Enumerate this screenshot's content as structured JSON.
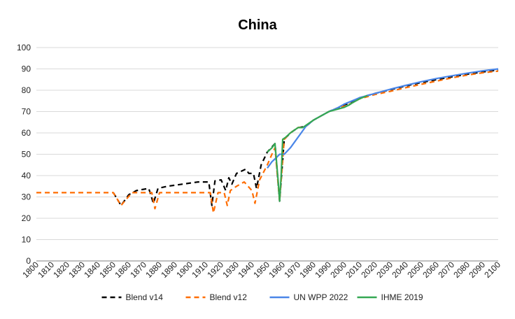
{
  "chart_data": {
    "type": "line",
    "title": "China",
    "xlabel": "",
    "ylabel": "",
    "xlim": [
      1800,
      2100
    ],
    "ylim": [
      0,
      100
    ],
    "x_ticks": [
      1800,
      1810,
      1820,
      1830,
      1840,
      1850,
      1860,
      1870,
      1880,
      1890,
      1900,
      1910,
      1920,
      1930,
      1940,
      1950,
      1960,
      1970,
      1980,
      1990,
      2000,
      2010,
      2020,
      2030,
      2040,
      2050,
      2060,
      2070,
      2080,
      2090,
      2100
    ],
    "y_ticks": [
      0,
      10,
      20,
      30,
      40,
      50,
      60,
      70,
      80,
      90,
      100
    ],
    "grid": "horizontal",
    "legend_position": "bottom",
    "series": [
      {
        "name": "Blend v14",
        "color": "#000000",
        "style": "dashed",
        "points": [
          [
            1850,
            32
          ],
          [
            1855,
            26
          ],
          [
            1860,
            31
          ],
          [
            1865,
            33
          ],
          [
            1873,
            34
          ],
          [
            1876,
            27
          ],
          [
            1879,
            34
          ],
          [
            1885,
            35
          ],
          [
            1895,
            36
          ],
          [
            1905,
            37
          ],
          [
            1912,
            37
          ],
          [
            1914,
            26
          ],
          [
            1916,
            37.5
          ],
          [
            1920,
            38
          ],
          [
            1923,
            33
          ],
          [
            1925,
            39
          ],
          [
            1927,
            36
          ],
          [
            1930,
            41
          ],
          [
            1936,
            43
          ],
          [
            1938,
            41
          ],
          [
            1941,
            41
          ],
          [
            1943,
            34
          ],
          [
            1946,
            45
          ],
          [
            1950,
            51
          ],
          [
            1955,
            55
          ],
          [
            1958,
            28
          ],
          [
            1961,
            57
          ],
          [
            1965,
            60
          ],
          [
            1970,
            62.5
          ],
          [
            1975,
            63
          ],
          [
            1980,
            66
          ],
          [
            1985,
            68
          ],
          [
            1990,
            70
          ],
          [
            1995,
            71.5
          ],
          [
            2000,
            73
          ],
          [
            2005,
            74.5
          ],
          [
            2010,
            76.5
          ],
          [
            2015,
            77.5
          ],
          [
            2020,
            78.5
          ],
          [
            2030,
            80.3
          ],
          [
            2040,
            82
          ],
          [
            2050,
            83.6
          ],
          [
            2060,
            85
          ],
          [
            2070,
            86.3
          ],
          [
            2080,
            87.5
          ],
          [
            2090,
            88.6
          ],
          [
            2100,
            89.5
          ]
        ]
      },
      {
        "name": "Blend v12",
        "color": "#ff6d01",
        "style": "dashed",
        "points": [
          [
            1800,
            32
          ],
          [
            1845,
            32
          ],
          [
            1850,
            32
          ],
          [
            1855,
            26
          ],
          [
            1862,
            32
          ],
          [
            1875,
            32
          ],
          [
            1877,
            24.5
          ],
          [
            1880,
            32
          ],
          [
            1890,
            32
          ],
          [
            1900,
            32
          ],
          [
            1913,
            32
          ],
          [
            1915,
            22.5
          ],
          [
            1918,
            32
          ],
          [
            1922,
            32
          ],
          [
            1924,
            26
          ],
          [
            1926,
            33
          ],
          [
            1930,
            35
          ],
          [
            1935,
            37
          ],
          [
            1940,
            33
          ],
          [
            1942,
            27
          ],
          [
            1945,
            38
          ],
          [
            1950,
            45
          ],
          [
            1953,
            50
          ],
          [
            1955,
            53
          ],
          [
            1958,
            28
          ],
          [
            1961,
            57
          ],
          [
            1965,
            60
          ],
          [
            1970,
            62.5
          ],
          [
            1975,
            63
          ],
          [
            1980,
            66
          ],
          [
            1985,
            68
          ],
          [
            1990,
            70
          ],
          [
            1995,
            71.5
          ],
          [
            2000,
            72.5
          ],
          [
            2005,
            74
          ],
          [
            2010,
            76
          ],
          [
            2015,
            77
          ],
          [
            2020,
            78
          ],
          [
            2030,
            79.5
          ],
          [
            2040,
            81.2
          ],
          [
            2050,
            82.8
          ],
          [
            2060,
            84.3
          ],
          [
            2070,
            85.8
          ],
          [
            2080,
            87.1
          ],
          [
            2090,
            88.2
          ],
          [
            2100,
            89
          ]
        ]
      },
      {
        "name": "UN WPP 2022",
        "color": "#4a86e8",
        "style": "solid",
        "points": [
          [
            1950,
            43.5
          ],
          [
            1953,
            46.5
          ],
          [
            1956,
            48.5
          ],
          [
            1958,
            50
          ],
          [
            1961,
            50
          ],
          [
            1965,
            53
          ],
          [
            1968,
            56
          ],
          [
            1972,
            60
          ],
          [
            1975,
            63
          ],
          [
            1980,
            66
          ],
          [
            1985,
            68
          ],
          [
            1990,
            70
          ],
          [
            1995,
            71.5
          ],
          [
            2000,
            73.5
          ],
          [
            2005,
            75
          ],
          [
            2010,
            76.5
          ],
          [
            2015,
            77.5
          ],
          [
            2020,
            78.5
          ],
          [
            2030,
            80.5
          ],
          [
            2040,
            82.3
          ],
          [
            2050,
            84
          ],
          [
            2060,
            85.5
          ],
          [
            2070,
            86.8
          ],
          [
            2080,
            88
          ],
          [
            2090,
            89.1
          ],
          [
            2100,
            90
          ]
        ]
      },
      {
        "name": "IHME 2019",
        "color": "#34a853",
        "style": "solid",
        "points": [
          [
            1950,
            51
          ],
          [
            1953,
            53
          ],
          [
            1955,
            55
          ],
          [
            1957,
            38
          ],
          [
            1958,
            28
          ],
          [
            1959,
            40
          ],
          [
            1960,
            57
          ],
          [
            1962,
            58
          ],
          [
            1965,
            60
          ],
          [
            1970,
            62.5
          ],
          [
            1973,
            62.5
          ],
          [
            1976,
            64
          ],
          [
            1980,
            66
          ],
          [
            1985,
            68
          ],
          [
            1990,
            70
          ],
          [
            1995,
            71
          ],
          [
            2000,
            72
          ],
          [
            2003,
            73
          ],
          [
            2005,
            74
          ],
          [
            2010,
            76
          ],
          [
            2015,
            77.5
          ]
        ]
      }
    ]
  }
}
